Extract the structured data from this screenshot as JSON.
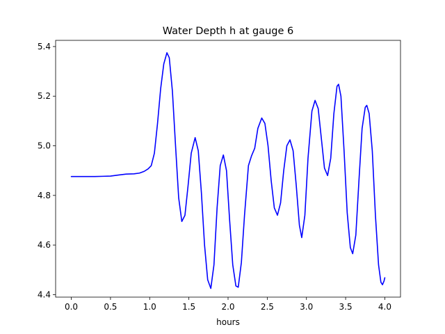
{
  "chart_data": {
    "type": "line",
    "title": "Water Depth h at gauge 6",
    "xlabel": "hours",
    "ylabel": "",
    "xlim": [
      -0.2,
      4.2
    ],
    "ylim": [
      4.39,
      5.425
    ],
    "xticks": [
      0.0,
      0.5,
      1.0,
      1.5,
      2.0,
      2.5,
      3.0,
      3.5,
      4.0
    ],
    "xtick_labels": [
      "0.0",
      "0.5",
      "1.0",
      "1.5",
      "2.0",
      "2.5",
      "3.0",
      "3.5",
      "4.0"
    ],
    "yticks": [
      4.4,
      4.6,
      4.8,
      5.0,
      5.2,
      5.4
    ],
    "ytick_labels": [
      "4.4",
      "4.6",
      "4.8",
      "5.0",
      "5.2",
      "5.4"
    ],
    "grid": false,
    "legend": "none",
    "series": [
      {
        "color": "#0000ff",
        "points": [
          [
            0.0,
            4.876
          ],
          [
            0.1,
            4.876
          ],
          [
            0.2,
            4.876
          ],
          [
            0.3,
            4.876
          ],
          [
            0.4,
            4.877
          ],
          [
            0.5,
            4.878
          ],
          [
            0.6,
            4.882
          ],
          [
            0.7,
            4.886
          ],
          [
            0.8,
            4.887
          ],
          [
            0.87,
            4.89
          ],
          [
            0.93,
            4.897
          ],
          [
            0.98,
            4.907
          ],
          [
            1.02,
            4.92
          ],
          [
            1.06,
            4.97
          ],
          [
            1.1,
            5.09
          ],
          [
            1.14,
            5.23
          ],
          [
            1.18,
            5.33
          ],
          [
            1.22,
            5.375
          ],
          [
            1.25,
            5.355
          ],
          [
            1.29,
            5.22
          ],
          [
            1.33,
            5.0
          ],
          [
            1.37,
            4.79
          ],
          [
            1.41,
            4.695
          ],
          [
            1.45,
            4.72
          ],
          [
            1.49,
            4.84
          ],
          [
            1.53,
            4.97
          ],
          [
            1.58,
            5.033
          ],
          [
            1.62,
            4.98
          ],
          [
            1.66,
            4.81
          ],
          [
            1.7,
            4.6
          ],
          [
            1.74,
            4.46
          ],
          [
            1.78,
            4.425
          ],
          [
            1.82,
            4.52
          ],
          [
            1.86,
            4.75
          ],
          [
            1.9,
            4.92
          ],
          [
            1.94,
            4.963
          ],
          [
            1.98,
            4.9
          ],
          [
            2.02,
            4.7
          ],
          [
            2.06,
            4.52
          ],
          [
            2.1,
            4.435
          ],
          [
            2.13,
            4.43
          ],
          [
            2.17,
            4.53
          ],
          [
            2.21,
            4.72
          ],
          [
            2.26,
            4.92
          ],
          [
            2.3,
            4.96
          ],
          [
            2.34,
            4.99
          ],
          [
            2.38,
            5.07
          ],
          [
            2.43,
            5.112
          ],
          [
            2.47,
            5.09
          ],
          [
            2.51,
            5.0
          ],
          [
            2.55,
            4.86
          ],
          [
            2.59,
            4.75
          ],
          [
            2.63,
            4.72
          ],
          [
            2.67,
            4.77
          ],
          [
            2.71,
            4.9
          ],
          [
            2.75,
            5.0
          ],
          [
            2.79,
            5.024
          ],
          [
            2.83,
            4.98
          ],
          [
            2.87,
            4.84
          ],
          [
            2.91,
            4.68
          ],
          [
            2.94,
            4.63
          ],
          [
            2.98,
            4.72
          ],
          [
            3.02,
            4.95
          ],
          [
            3.07,
            5.14
          ],
          [
            3.11,
            5.183
          ],
          [
            3.15,
            5.15
          ],
          [
            3.19,
            5.03
          ],
          [
            3.23,
            4.91
          ],
          [
            3.27,
            4.88
          ],
          [
            3.31,
            4.95
          ],
          [
            3.35,
            5.13
          ],
          [
            3.39,
            5.24
          ],
          [
            3.41,
            5.248
          ],
          [
            3.44,
            5.2
          ],
          [
            3.48,
            4.98
          ],
          [
            3.52,
            4.73
          ],
          [
            3.56,
            4.59
          ],
          [
            3.59,
            4.565
          ],
          [
            3.63,
            4.64
          ],
          [
            3.67,
            4.86
          ],
          [
            3.71,
            5.07
          ],
          [
            3.75,
            5.155
          ],
          [
            3.77,
            5.163
          ],
          [
            3.8,
            5.13
          ],
          [
            3.84,
            4.98
          ],
          [
            3.88,
            4.72
          ],
          [
            3.92,
            4.52
          ],
          [
            3.95,
            4.45
          ],
          [
            3.97,
            4.44
          ],
          [
            3.99,
            4.455
          ],
          [
            4.0,
            4.468
          ]
        ]
      }
    ]
  }
}
